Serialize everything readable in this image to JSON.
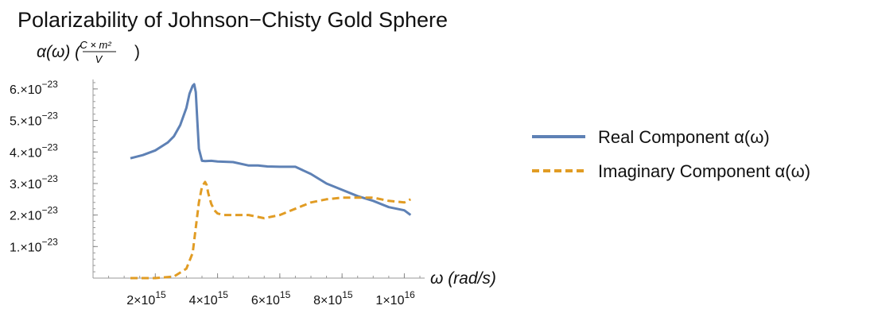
{
  "chart_data": {
    "type": "line",
    "title": "Polarizability of Johnson−Chisty Gold Sphere",
    "ylabel": {
      "prefix": "α(ω) (",
      "numerator": "C × m²",
      "denominator": "V",
      "suffix": ")"
    },
    "xlabel": "ω (rad/s)",
    "xlim": [
      0,
      1.05e+16
    ],
    "ylim": [
      0,
      6.3e-23
    ],
    "x_ticks": [
      {
        "value": 2000000000000000.0,
        "label": "2×10",
        "exp": "15"
      },
      {
        "value": 4000000000000000.0,
        "label": "4×10",
        "exp": "15"
      },
      {
        "value": 6000000000000000.0,
        "label": "6×10",
        "exp": "15"
      },
      {
        "value": 8000000000000000.0,
        "label": "8×10",
        "exp": "15"
      },
      {
        "value": 1e+16,
        "label": "1×10",
        "exp": "16"
      }
    ],
    "y_ticks": [
      {
        "value": 1e-23,
        "label": "1.×10",
        "exp": "−23"
      },
      {
        "value": 2e-23,
        "label": "2.×10",
        "exp": "−23"
      },
      {
        "value": 3e-23,
        "label": "3.×10",
        "exp": "−23"
      },
      {
        "value": 4e-23,
        "label": "4.×10",
        "exp": "−23"
      },
      {
        "value": 5e-23,
        "label": "5.×10",
        "exp": "−23"
      },
      {
        "value": 6e-23,
        "label": "6.×10",
        "exp": "−23"
      }
    ],
    "legend_position": "right",
    "grid": false,
    "series": [
      {
        "name": "Real Component α(ω)",
        "color": "#5e81b5",
        "style": "solid",
        "x": [
          1200000000000000.0,
          1600000000000000.0,
          2000000000000000.0,
          2400000000000000.0,
          2600000000000000.0,
          2800000000000000.0,
          3000000000000000.0,
          3100000000000000.0,
          3200000000000000.0,
          3250000000000000.0,
          3300000000000000.0,
          3350000000000000.0,
          3400000000000000.0,
          3500000000000000.0,
          3600000000000000.0,
          3800000000000000.0,
          4000000000000000.0,
          4500000000000000.0,
          5000000000000000.0,
          5300000000000000.0,
          5600000000000000.0,
          6000000000000000.0,
          6500000000000000.0,
          7000000000000000.0,
          7500000000000000.0,
          8000000000000000.0,
          8500000000000000.0,
          9000000000000000.0,
          9500000000000000.0,
          1e+16,
          1.02e+16
        ],
        "y": [
          3.8e-23,
          3.9e-23,
          4.05e-23,
          4.3e-23,
          4.5e-23,
          4.85e-23,
          5.4e-23,
          5.85e-23,
          6.1e-23,
          6.15e-23,
          5.9e-23,
          5e-23,
          4.1e-23,
          3.72e-23,
          3.71e-23,
          3.72e-23,
          3.7e-23,
          3.68e-23,
          3.57e-23,
          3.57e-23,
          3.54e-23,
          3.53e-23,
          3.53e-23,
          3.3e-23,
          3e-23,
          2.8e-23,
          2.6e-23,
          2.45e-23,
          2.25e-23,
          2.15e-23,
          2e-23
        ]
      },
      {
        "name": "Imaginary Component α(ω)",
        "color": "#e19c24",
        "style": "dashed",
        "x": [
          1200000000000000.0,
          2000000000000000.0,
          2600000000000000.0,
          3000000000000000.0,
          3200000000000000.0,
          3300000000000000.0,
          3400000000000000.0,
          3500000000000000.0,
          3600000000000000.0,
          3650000000000000.0,
          3700000000000000.0,
          3800000000000000.0,
          3900000000000000.0,
          4000000000000000.0,
          4200000000000000.0,
          4500000000000000.0,
          5000000000000000.0,
          5500000000000000.0,
          6000000000000000.0,
          6500000000000000.0,
          7000000000000000.0,
          7500000000000000.0,
          8000000000000000.0,
          8500000000000000.0,
          9000000000000000.0,
          9500000000000000.0,
          1e+16,
          1.02e+16
        ],
        "y": [
          0.0,
          0.0,
          5e-25,
          3e-24,
          8e-24,
          1.6e-23,
          2.4e-23,
          2.9e-23,
          3.05e-23,
          2.95e-23,
          2.7e-23,
          2.35e-23,
          2.15e-23,
          2.05e-23,
          2e-23,
          2e-23,
          2e-23,
          1.9e-23,
          2e-23,
          2.2e-23,
          2.4e-23,
          2.5e-23,
          2.55e-23,
          2.55e-23,
          2.55e-23,
          2.45e-23,
          2.4e-23,
          2.5e-23
        ]
      }
    ]
  }
}
